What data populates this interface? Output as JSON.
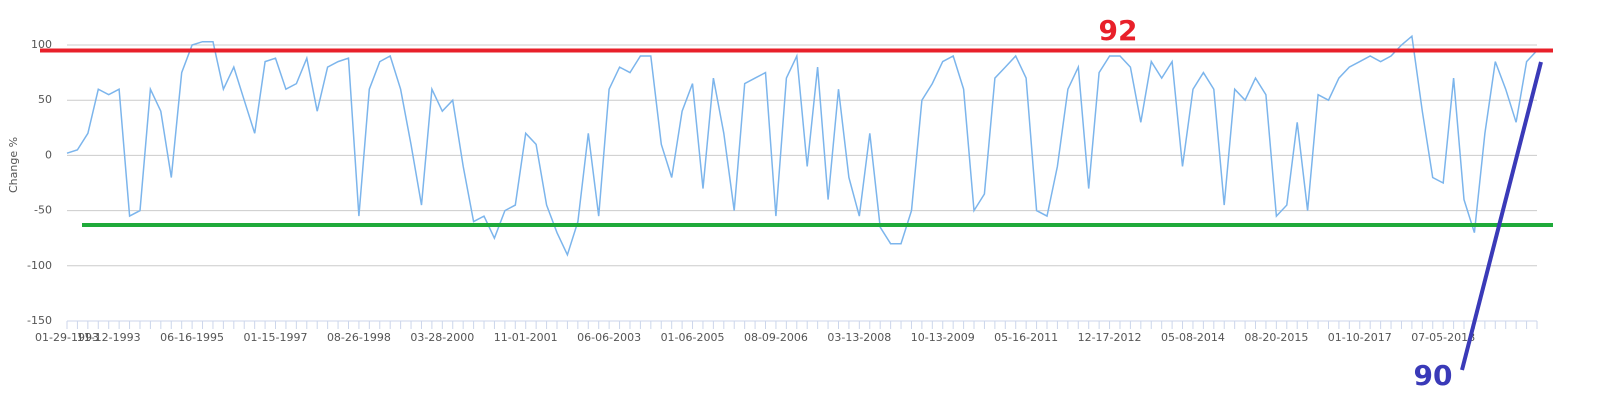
{
  "chart_data": {
    "type": "line",
    "y_label": "Change %",
    "categories": [
      "01-29-1993",
      null,
      null,
      null,
      "11-12-1993",
      null,
      null,
      null,
      null,
      null,
      null,
      null,
      "06-16-1995",
      null,
      null,
      null,
      null,
      null,
      null,
      null,
      "01-15-1997",
      null,
      null,
      null,
      null,
      null,
      null,
      null,
      "08-26-1998",
      null,
      null,
      null,
      null,
      null,
      null,
      null,
      "03-28-2000",
      null,
      null,
      null,
      null,
      null,
      null,
      null,
      "11-01-2001",
      null,
      null,
      null,
      null,
      null,
      null,
      null,
      "06-06-2003",
      null,
      null,
      null,
      null,
      null,
      null,
      null,
      "01-06-2005",
      null,
      null,
      null,
      null,
      null,
      null,
      null,
      "08-09-2006",
      null,
      null,
      null,
      null,
      null,
      null,
      null,
      "03-13-2008",
      null,
      null,
      null,
      null,
      null,
      null,
      null,
      "10-13-2009",
      null,
      null,
      null,
      null,
      null,
      null,
      null,
      "05-16-2011",
      null,
      null,
      null,
      null,
      null,
      null,
      null,
      "12-17-2012",
      null,
      null,
      null,
      null,
      null,
      null,
      null,
      "05-08-2014",
      null,
      null,
      null,
      null,
      null,
      null,
      null,
      "08-20-2015",
      null,
      null,
      null,
      null,
      null,
      null,
      null,
      "01-10-2017",
      null,
      null,
      null,
      null,
      null,
      null,
      null,
      "07-05-2018",
      null,
      null,
      null,
      null,
      null,
      null,
      null,
      null,
      null
    ],
    "series": [
      {
        "color": "#7cb5ec",
        "values": [
          2,
          5,
          20,
          60,
          55,
          60,
          -55,
          -50,
          60,
          40,
          -20,
          75,
          100,
          103,
          103,
          60,
          80,
          50,
          20,
          85,
          88,
          60,
          65,
          88,
          40,
          80,
          85,
          88,
          -55,
          60,
          85,
          90,
          60,
          10,
          -45,
          60,
          40,
          50,
          -10,
          -60,
          -55,
          -75,
          -50,
          -45,
          20,
          10,
          -45,
          -70,
          -90,
          -60,
          20,
          -55,
          60,
          80,
          75,
          90,
          90,
          10,
          -20,
          40,
          65,
          -30,
          70,
          20,
          -50,
          65,
          70,
          75,
          -55,
          70,
          90,
          -10,
          80,
          -40,
          60,
          -20,
          -55,
          20,
          -65,
          -80,
          -80,
          -50,
          50,
          65,
          85,
          90,
          60,
          -50,
          -35,
          70,
          80,
          90,
          70,
          -50,
          -55,
          -10,
          60,
          80,
          -30,
          75,
          90,
          90,
          80,
          30,
          85,
          70,
          85,
          -10,
          60,
          75,
          60,
          -45,
          60,
          50,
          70,
          55,
          -55,
          -45,
          30,
          -50,
          55,
          50,
          70,
          80,
          85,
          90,
          85,
          90,
          100,
          108,
          40,
          -20,
          -25,
          70,
          -40,
          -70,
          20,
          85,
          60,
          30,
          85,
          95
        ]
      }
    ],
    "ylim": [
      -150,
      105
    ],
    "yticks": [
      -150,
      -100,
      -50,
      0,
      50,
      100
    ],
    "grid": true,
    "annotations": [
      {
        "label": "92",
        "value": 95,
        "color": "#e8202a"
      },
      {
        "value": -63,
        "color": "#1faa3a"
      },
      {
        "label": "90",
        "color": "#3a3ab8"
      }
    ]
  }
}
